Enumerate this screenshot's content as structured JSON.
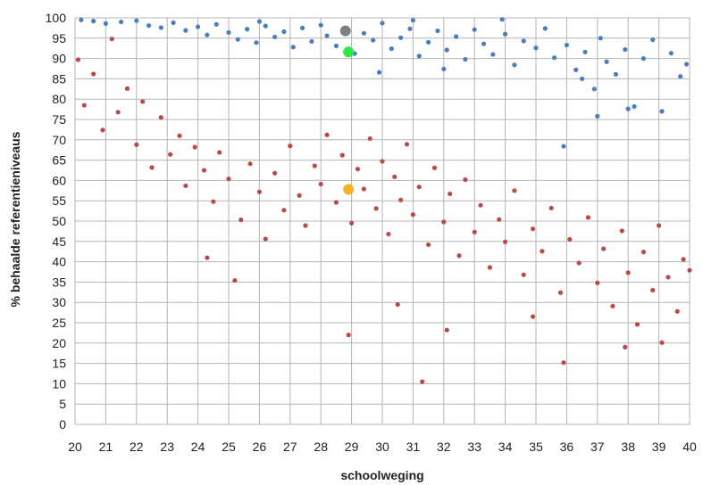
{
  "chart_data": {
    "type": "scatter",
    "title": "",
    "xlabel": "schoolweging",
    "ylabel": "% behaalde referentieniveaus",
    "xlim": [
      20,
      40
    ],
    "ylim": [
      0,
      100
    ],
    "x_ticks": [
      20,
      21,
      22,
      23,
      24,
      25,
      26,
      27,
      28,
      29,
      30,
      31,
      32,
      33,
      34,
      35,
      36,
      37,
      38,
      39,
      40
    ],
    "y_ticks": [
      0,
      5,
      10,
      15,
      20,
      25,
      30,
      35,
      40,
      45,
      50,
      55,
      60,
      65,
      70,
      75,
      80,
      85,
      90,
      95,
      100
    ],
    "grid": true,
    "legend": "none",
    "series": [
      {
        "color": "#4a7ebb",
        "points": [
          [
            20.2,
            99.5
          ],
          [
            20.6,
            99.2
          ],
          [
            21.0,
            98.6
          ],
          [
            21.5,
            99.0
          ],
          [
            22.0,
            99.3
          ],
          [
            22.4,
            98.1
          ],
          [
            22.8,
            97.6
          ],
          [
            23.2,
            98.8
          ],
          [
            23.6,
            96.9
          ],
          [
            24.0,
            97.8
          ],
          [
            24.3,
            95.8
          ],
          [
            24.6,
            98.4
          ],
          [
            25.0,
            96.4
          ],
          [
            25.3,
            94.7
          ],
          [
            25.6,
            97.2
          ],
          [
            25.9,
            93.9
          ],
          [
            26.2,
            98.0
          ],
          [
            26.5,
            95.3
          ],
          [
            26.8,
            96.6
          ],
          [
            27.1,
            92.8
          ],
          [
            27.4,
            97.5
          ],
          [
            27.7,
            94.2
          ],
          [
            28.0,
            98.2
          ],
          [
            28.2,
            95.6
          ],
          [
            28.5,
            93.1
          ],
          [
            28.8,
            97.0
          ],
          [
            29.1,
            91.2
          ],
          [
            29.4,
            96.2
          ],
          [
            29.7,
            94.5
          ],
          [
            30.0,
            98.7
          ],
          [
            30.3,
            92.4
          ],
          [
            30.6,
            95.1
          ],
          [
            30.9,
            97.3
          ],
          [
            31.2,
            90.6
          ],
          [
            31.5,
            94.0
          ],
          [
            31.8,
            96.8
          ],
          [
            32.1,
            92.1
          ],
          [
            32.4,
            95.4
          ],
          [
            32.7,
            89.8
          ],
          [
            33.0,
            97.1
          ],
          [
            33.3,
            93.6
          ],
          [
            33.6,
            91.0
          ],
          [
            34.0,
            96.0
          ],
          [
            34.3,
            88.4
          ],
          [
            34.6,
            94.3
          ],
          [
            35.0,
            92.6
          ],
          [
            35.3,
            97.4
          ],
          [
            35.6,
            90.2
          ],
          [
            36.0,
            93.3
          ],
          [
            36.3,
            87.2
          ],
          [
            36.5,
            85.0
          ],
          [
            36.6,
            91.6
          ],
          [
            36.9,
            82.5
          ],
          [
            37.1,
            95.0
          ],
          [
            37.3,
            89.2
          ],
          [
            37.6,
            86.1
          ],
          [
            37.9,
            92.2
          ],
          [
            38.2,
            78.2
          ],
          [
            38.5,
            90.0
          ],
          [
            38.8,
            94.6
          ],
          [
            39.1,
            77.0
          ],
          [
            39.4,
            91.3
          ],
          [
            39.7,
            85.6
          ],
          [
            39.9,
            88.6
          ],
          [
            29.9,
            86.6
          ],
          [
            32.0,
            87.4
          ],
          [
            35.9,
            68.4
          ],
          [
            37.0,
            75.8
          ],
          [
            38.0,
            77.6
          ],
          [
            26.0,
            99.1
          ],
          [
            31.0,
            99.4
          ],
          [
            33.9,
            99.6
          ]
        ]
      },
      {
        "color": "#b94a48",
        "points": [
          [
            20.1,
            89.7
          ],
          [
            20.3,
            78.5
          ],
          [
            20.6,
            86.2
          ],
          [
            20.9,
            72.4
          ],
          [
            21.2,
            94.8
          ],
          [
            21.4,
            76.8
          ],
          [
            21.7,
            82.6
          ],
          [
            22.0,
            68.8
          ],
          [
            22.2,
            79.4
          ],
          [
            22.5,
            63.2
          ],
          [
            22.8,
            75.5
          ],
          [
            23.1,
            66.4
          ],
          [
            23.4,
            71.0
          ],
          [
            23.6,
            58.7
          ],
          [
            23.9,
            68.2
          ],
          [
            24.2,
            62.5
          ],
          [
            24.5,
            54.8
          ],
          [
            24.7,
            66.9
          ],
          [
            25.0,
            60.4
          ],
          [
            25.2,
            35.4
          ],
          [
            25.4,
            50.3
          ],
          [
            25.7,
            64.1
          ],
          [
            26.0,
            57.2
          ],
          [
            26.2,
            45.6
          ],
          [
            26.5,
            61.8
          ],
          [
            26.8,
            52.7
          ],
          [
            27.0,
            68.5
          ],
          [
            27.3,
            56.3
          ],
          [
            27.5,
            48.9
          ],
          [
            27.8,
            63.6
          ],
          [
            28.0,
            59.1
          ],
          [
            28.2,
            71.2
          ],
          [
            28.5,
            54.6
          ],
          [
            28.7,
            66.2
          ],
          [
            29.0,
            49.5
          ],
          [
            29.2,
            62.8
          ],
          [
            29.4,
            57.9
          ],
          [
            29.6,
            70.3
          ],
          [
            29.8,
            53.1
          ],
          [
            30.0,
            64.7
          ],
          [
            30.2,
            46.8
          ],
          [
            30.4,
            60.9
          ],
          [
            30.6,
            55.2
          ],
          [
            30.8,
            68.9
          ],
          [
            31.0,
            51.6
          ],
          [
            31.2,
            58.4
          ],
          [
            31.3,
            10.5
          ],
          [
            31.5,
            44.2
          ],
          [
            31.7,
            63.1
          ],
          [
            32.0,
            49.8
          ],
          [
            32.2,
            56.7
          ],
          [
            32.5,
            41.5
          ],
          [
            32.7,
            60.2
          ],
          [
            33.0,
            47.3
          ],
          [
            33.2,
            53.9
          ],
          [
            33.5,
            38.6
          ],
          [
            33.8,
            50.4
          ],
          [
            34.0,
            44.9
          ],
          [
            34.3,
            57.5
          ],
          [
            34.6,
            36.8
          ],
          [
            34.9,
            48.1
          ],
          [
            35.2,
            42.6
          ],
          [
            35.5,
            53.2
          ],
          [
            35.8,
            32.4
          ],
          [
            35.9,
            15.2
          ],
          [
            36.1,
            45.5
          ],
          [
            36.4,
            39.7
          ],
          [
            36.7,
            50.9
          ],
          [
            37.0,
            34.8
          ],
          [
            37.2,
            43.2
          ],
          [
            37.5,
            29.1
          ],
          [
            37.8,
            47.6
          ],
          [
            38.0,
            37.3
          ],
          [
            38.3,
            24.6
          ],
          [
            38.5,
            42.4
          ],
          [
            38.8,
            33.0
          ],
          [
            39.0,
            48.9
          ],
          [
            39.1,
            20.1
          ],
          [
            39.3,
            36.2
          ],
          [
            39.6,
            27.8
          ],
          [
            39.8,
            40.6
          ],
          [
            40.0,
            37.9
          ],
          [
            24.3,
            41.0
          ],
          [
            28.9,
            22.0
          ],
          [
            30.5,
            29.5
          ],
          [
            32.1,
            23.2
          ],
          [
            34.9,
            26.5
          ],
          [
            37.9,
            19.0
          ]
        ]
      }
    ],
    "highlights": [
      {
        "x": 28.8,
        "y": 96.8,
        "color": "#7a7f88"
      },
      {
        "x": 28.9,
        "y": 91.6,
        "color": "#2ee84a"
      },
      {
        "x": 28.9,
        "y": 57.8,
        "color": "#f5b21e"
      }
    ]
  }
}
